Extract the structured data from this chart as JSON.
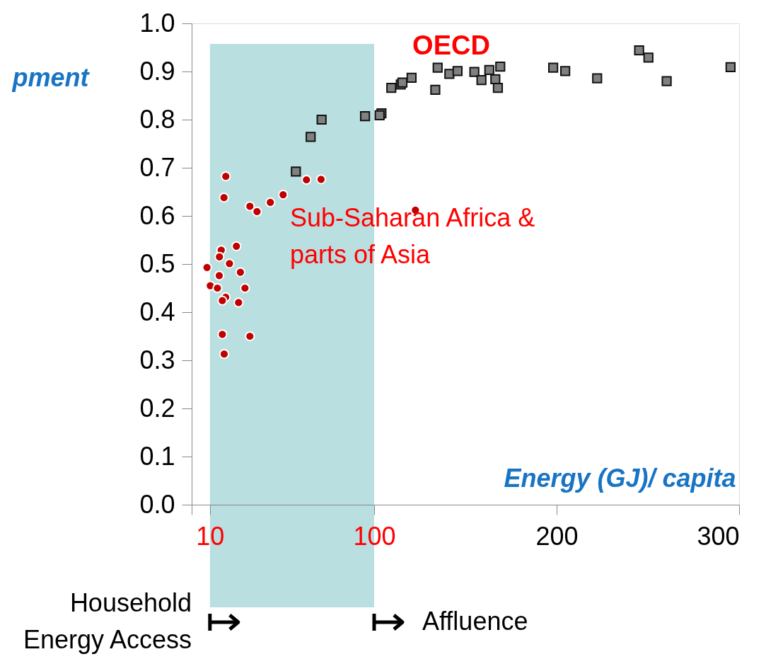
{
  "chart_data": {
    "type": "scatter",
    "ylabel": "pment",
    "xlabel": "Energy (GJ)/ capita",
    "xlim": [
      0,
      300
    ],
    "xticks": [
      {
        "value": 0,
        "label": null
      },
      10,
      100,
      200,
      300
    ],
    "ylim": [
      0,
      1
    ],
    "yticks": [
      {
        "value": 0,
        "label": "0.0"
      },
      0.1,
      0.2,
      0.3,
      0.4,
      0.5,
      0.6,
      0.7,
      0.8,
      0.9,
      {
        "value": 1,
        "label": "1.0"
      }
    ],
    "grid": false,
    "bands": [
      {
        "axis": "x",
        "from": 10,
        "to": 100,
        "color": "#b9dfe1"
      }
    ],
    "annotations": [
      "OECD",
      "Sub-Saharan Africa &\nparts of Asia",
      "Household\nEnergy Access",
      "Affluence"
    ],
    "series": [
      {
        "color": "#808080",
        "marker": "square",
        "x": [
          57.1,
          65.2,
          71.2,
          95.0,
          104.0,
          103.0,
          109.4,
          114.6,
          115.5,
          120.5,
          133.5,
          134.8,
          141.2,
          145.7,
          154.9,
          158.8,
          163.1,
          166.4,
          167.8,
          169.1,
          198.1,
          204.7,
          222.2,
          245.2,
          250.3,
          260.3,
          295.3
        ],
        "values": [
          0.692,
          0.764,
          0.8,
          0.807,
          0.813,
          0.809,
          0.866,
          0.873,
          0.877,
          0.887,
          0.862,
          0.908,
          0.895,
          0.901,
          0.899,
          0.882,
          0.903,
          0.884,
          0.866,
          0.91,
          0.908,
          0.901,
          0.886,
          0.944,
          0.929,
          0.88,
          0.909
        ]
      },
      {
        "color": "#c00000",
        "marker": "circle",
        "x": [
          18.7,
          17.7,
          31.9,
          35.8,
          43.1,
          50.1,
          62.9,
          70.9,
          24.5,
          16.2,
          15.2,
          20.7,
          8.4,
          15.1,
          26.7,
          10.2,
          14.1,
          29.2,
          18.6,
          16.8,
          25.7,
          16.8,
          31.9,
          17.8,
          122.6
        ],
        "values": [
          0.682,
          0.638,
          0.62,
          0.609,
          0.628,
          0.644,
          0.675,
          0.676,
          0.537,
          0.529,
          0.515,
          0.501,
          0.493,
          0.476,
          0.483,
          0.455,
          0.45,
          0.45,
          0.431,
          0.424,
          0.42,
          0.354,
          0.35,
          0.313,
          0.612
        ]
      }
    ]
  }
}
